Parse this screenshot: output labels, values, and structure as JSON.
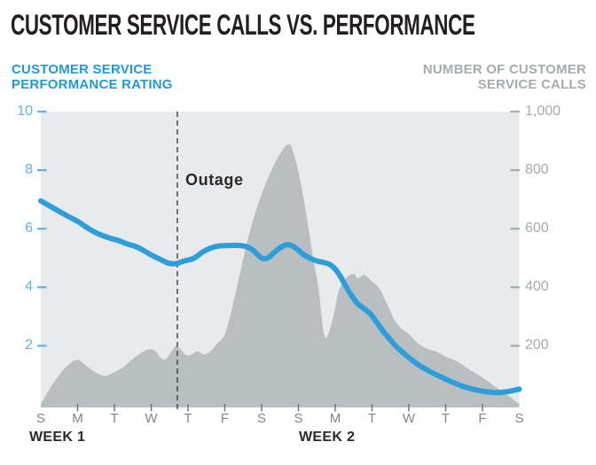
{
  "title": "CUSTOMER SERVICE CALLS VS. PERFORMANCE",
  "legend": {
    "left": {
      "line1": "CUSTOMER SERVICE",
      "line2": "PERFORMANCE RATING"
    },
    "right": {
      "line1": "NUMBER OF CUSTOMER",
      "line2": "SERVICE CALLS"
    }
  },
  "annotation": {
    "outage_label": "Outage"
  },
  "colors": {
    "title_text": "#231f20",
    "performance_line": "#2d9ed9",
    "left_axis_text": "#5fb2e3",
    "left_legend_text": "#2199d8",
    "calls_area_fill": "#b9bec1",
    "plot_background": "#e9eaeb",
    "right_axis_text": "#a6abae",
    "day_label_text": "#7f868a",
    "week_label_text": "#2a2a2b",
    "outage_line": "#3f3f41"
  },
  "chart_data": {
    "type": "combo: smoothed line (left axis) + smoothed area (right axis)",
    "x_unit": "day index over two weeks; 0 = first Sunday, 13 = last Sunday",
    "day_labels": [
      "S",
      "M",
      "T",
      "W",
      "T",
      "F",
      "S",
      "S",
      "M",
      "T",
      "W",
      "T",
      "F",
      "S"
    ],
    "week_labels": [
      "WEEK 1",
      "WEEK 2"
    ],
    "left_axis": {
      "title": "CUSTOMER SERVICE PERFORMANCE RATING",
      "tick_labels": [
        "10",
        "8",
        "6",
        "4",
        "2"
      ],
      "tick_values": [
        10,
        8,
        6,
        4,
        2
      ],
      "range": [
        0,
        10
      ]
    },
    "right_axis": {
      "title": "NUMBER OF CUSTOMER SERVICE CALLS",
      "tick_labels": [
        "1,000",
        "800",
        "600",
        "400",
        "200"
      ],
      "tick_values": [
        1000,
        800,
        600,
        400,
        200
      ],
      "range": [
        0,
        1000
      ]
    },
    "outage_line_x_day": 3.71,
    "grid": "off",
    "series": [
      {
        "name": "Customer Service Performance Rating",
        "type": "line",
        "axis": "left",
        "color": "#2d9ed9",
        "points": [
          [
            0,
            6.95
          ],
          [
            0.35,
            6.7
          ],
          [
            0.7,
            6.45
          ],
          [
            1.0,
            6.25
          ],
          [
            1.3,
            6.0
          ],
          [
            1.6,
            5.8
          ],
          [
            1.9,
            5.67
          ],
          [
            2.1,
            5.6
          ],
          [
            2.35,
            5.48
          ],
          [
            2.6,
            5.38
          ],
          [
            2.8,
            5.25
          ],
          [
            3.0,
            5.1
          ],
          [
            3.25,
            4.95
          ],
          [
            3.45,
            4.83
          ],
          [
            3.6,
            4.8
          ],
          [
            3.72,
            4.82
          ],
          [
            3.9,
            4.9
          ],
          [
            4.05,
            4.94
          ],
          [
            4.2,
            5.02
          ],
          [
            4.4,
            5.2
          ],
          [
            4.6,
            5.33
          ],
          [
            4.8,
            5.4
          ],
          [
            5.0,
            5.42
          ],
          [
            5.3,
            5.43
          ],
          [
            5.55,
            5.4
          ],
          [
            5.75,
            5.28
          ],
          [
            5.9,
            5.1
          ],
          [
            6.05,
            4.97
          ],
          [
            6.2,
            5.03
          ],
          [
            6.4,
            5.25
          ],
          [
            6.6,
            5.42
          ],
          [
            6.75,
            5.45
          ],
          [
            6.95,
            5.32
          ],
          [
            7.1,
            5.15
          ],
          [
            7.3,
            5.0
          ],
          [
            7.5,
            4.9
          ],
          [
            7.7,
            4.84
          ],
          [
            7.85,
            4.78
          ],
          [
            8.0,
            4.62
          ],
          [
            8.15,
            4.35
          ],
          [
            8.3,
            4.0
          ],
          [
            8.45,
            3.7
          ],
          [
            8.6,
            3.45
          ],
          [
            8.75,
            3.3
          ],
          [
            8.95,
            3.1
          ],
          [
            9.1,
            2.85
          ],
          [
            9.3,
            2.5
          ],
          [
            9.5,
            2.2
          ],
          [
            9.7,
            1.92
          ],
          [
            9.9,
            1.7
          ],
          [
            10.1,
            1.5
          ],
          [
            10.3,
            1.32
          ],
          [
            10.6,
            1.1
          ],
          [
            10.9,
            0.92
          ],
          [
            11.2,
            0.75
          ],
          [
            11.5,
            0.6
          ],
          [
            11.8,
            0.5
          ],
          [
            12.1,
            0.43
          ],
          [
            12.4,
            0.4
          ],
          [
            12.7,
            0.44
          ],
          [
            13,
            0.52
          ]
        ]
      },
      {
        "name": "Number of Customer Service Calls",
        "type": "area",
        "axis": "right",
        "color": "#b9bec1",
        "points": [
          [
            0,
            0
          ],
          [
            0.25,
            55
          ],
          [
            0.5,
            100
          ],
          [
            0.75,
            135
          ],
          [
            1.0,
            152
          ],
          [
            1.25,
            130
          ],
          [
            1.5,
            108
          ],
          [
            1.75,
            97
          ],
          [
            2.0,
            110
          ],
          [
            2.25,
            128
          ],
          [
            2.5,
            155
          ],
          [
            2.75,
            178
          ],
          [
            2.95,
            188
          ],
          [
            3.1,
            183
          ],
          [
            3.35,
            152
          ],
          [
            3.55,
            180
          ],
          [
            3.68,
            199
          ],
          [
            3.82,
            185
          ],
          [
            4.0,
            166
          ],
          [
            4.25,
            181
          ],
          [
            4.45,
            170
          ],
          [
            4.62,
            182
          ],
          [
            4.78,
            207
          ],
          [
            5.0,
            240
          ],
          [
            5.2,
            330
          ],
          [
            5.45,
            470
          ],
          [
            5.7,
            600
          ],
          [
            5.95,
            700
          ],
          [
            6.2,
            780
          ],
          [
            6.45,
            845
          ],
          [
            6.75,
            888
          ],
          [
            6.95,
            820
          ],
          [
            7.1,
            730
          ],
          [
            7.25,
            620
          ],
          [
            7.4,
            500
          ],
          [
            7.55,
            390
          ],
          [
            7.68,
            250
          ],
          [
            7.78,
            232
          ],
          [
            7.95,
            300
          ],
          [
            8.1,
            390
          ],
          [
            8.3,
            432
          ],
          [
            8.5,
            445
          ],
          [
            8.62,
            430
          ],
          [
            8.78,
            442
          ],
          [
            9.0,
            420
          ],
          [
            9.2,
            395
          ],
          [
            9.4,
            345
          ],
          [
            9.6,
            290
          ],
          [
            9.8,
            258
          ],
          [
            10.0,
            240
          ],
          [
            10.25,
            208
          ],
          [
            10.5,
            190
          ],
          [
            10.75,
            180
          ],
          [
            11.0,
            163
          ],
          [
            11.3,
            147
          ],
          [
            11.6,
            122
          ],
          [
            12.0,
            92
          ],
          [
            12.35,
            60
          ],
          [
            12.7,
            30
          ],
          [
            12.9,
            10
          ],
          [
            13,
            2
          ]
        ]
      }
    ]
  }
}
